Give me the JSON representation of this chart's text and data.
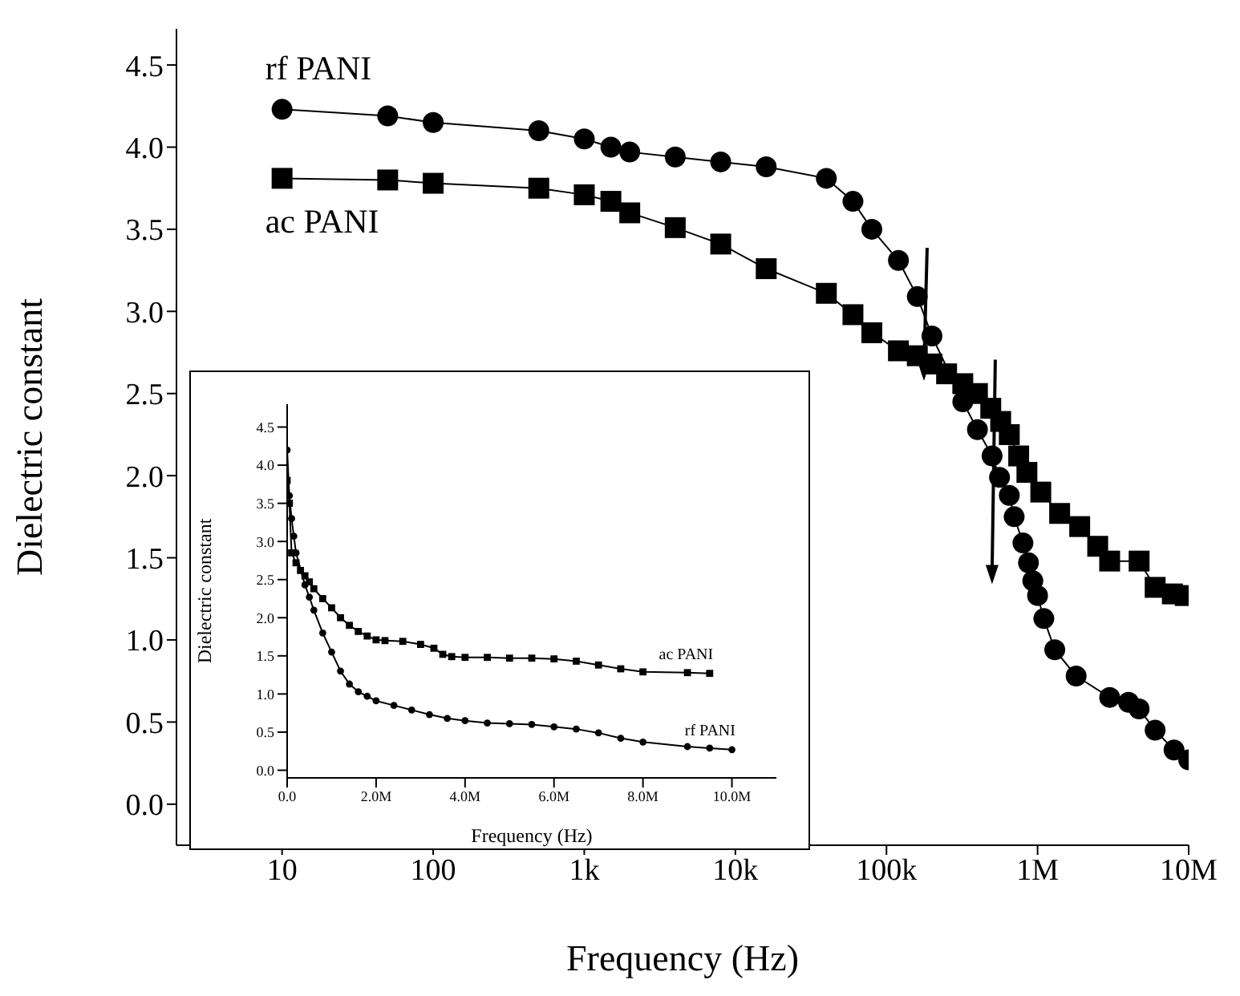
{
  "chart_data": [
    {
      "type": "line",
      "xlabel": "Frequency (Hz)",
      "ylabel": "Dielectric constant",
      "log": "x",
      "xlim": [
        2,
        10000000
      ],
      "xticks": [
        10,
        100,
        {
          "value": 1000,
          "label": "1k"
        },
        {
          "value": 10000,
          "label": "10k"
        },
        {
          "value": 100000,
          "label": "100k"
        },
        {
          "value": 1000000,
          "label": "1M"
        },
        {
          "value": 10000000,
          "label": "10M"
        }
      ],
      "ylim": [
        -0.25,
        4.72
      ],
      "yticks": [
        {
          "value": 0,
          "label": "0.0"
        },
        {
          "value": 0.5,
          "label": "0.5"
        },
        {
          "value": 1,
          "label": "1.0"
        },
        {
          "value": 1.5,
          "label": "1.5"
        },
        {
          "value": 2,
          "label": "2.0"
        },
        {
          "value": 2.5,
          "label": "2.5"
        },
        {
          "value": 3,
          "label": "3.0"
        },
        {
          "value": 3.5,
          "label": "3.5"
        },
        {
          "value": 4,
          "label": "4.0"
        },
        {
          "value": 4.5,
          "label": "4.5"
        }
      ],
      "line_style": "solid",
      "series": [
        {
          "name": "rf PANI",
          "color": "#000000",
          "marker": "circle",
          "x": [
            10,
            50,
            100,
            500,
            1000,
            1500,
            2000,
            4000,
            8000,
            16000,
            40000,
            60000,
            80000,
            120000,
            160000,
            200000,
            320000,
            400000,
            500000,
            560000,
            650000,
            700000,
            800000,
            870000,
            930000,
            1000000,
            1100000,
            1300000,
            1800000,
            3000000,
            4000000,
            4700000,
            6000000,
            8000000,
            10000000
          ],
          "values": [
            4.23,
            4.19,
            4.15,
            4.1,
            4.05,
            4.0,
            3.97,
            3.94,
            3.91,
            3.88,
            3.81,
            3.67,
            3.5,
            3.31,
            3.09,
            2.85,
            2.45,
            2.28,
            2.12,
            1.99,
            1.88,
            1.75,
            1.59,
            1.47,
            1.36,
            1.27,
            1.13,
            0.94,
            0.78,
            0.65,
            0.62,
            0.58,
            0.45,
            0.33,
            0.27
          ]
        },
        {
          "name": "ac PANI",
          "color": "#000000",
          "marker": "square",
          "x": [
            10,
            50,
            100,
            500,
            1000,
            1500,
            2000,
            4000,
            8000,
            16000,
            40000,
            60000,
            80000,
            120000,
            160000,
            200000,
            250000,
            320000,
            400000,
            490000,
            570000,
            650000,
            750000,
            850000,
            1050000,
            1400000,
            1900000,
            2500000,
            3000000,
            4700000,
            6000000,
            7800000,
            9500000
          ],
          "values": [
            3.81,
            3.8,
            3.78,
            3.75,
            3.71,
            3.67,
            3.6,
            3.51,
            3.41,
            3.26,
            3.11,
            2.98,
            2.87,
            2.76,
            2.73,
            2.68,
            2.62,
            2.56,
            2.5,
            2.41,
            2.33,
            2.25,
            2.12,
            2.02,
            1.9,
            1.77,
            1.69,
            1.57,
            1.48,
            1.48,
            1.32,
            1.28,
            1.27
          ]
        }
      ]
    },
    {
      "type": "line",
      "xlabel": "Frequency (Hz)",
      "ylabel": "Dielectric constant",
      "xlim": [
        0,
        11000000
      ],
      "xticks": [
        {
          "value": 0,
          "label": "0.0"
        },
        {
          "value": 2000000,
          "label": "2.0M"
        },
        {
          "value": 4000000,
          "label": "4.0M"
        },
        {
          "value": 6000000,
          "label": "6.0M"
        },
        {
          "value": 8000000,
          "label": "8.0M"
        },
        {
          "value": 10000000,
          "label": "10.0M"
        }
      ],
      "ylim": [
        -0.1,
        4.8
      ],
      "yticks": [
        {
          "value": 0,
          "label": "0.0"
        },
        {
          "value": 0.5,
          "label": "0.5"
        },
        {
          "value": 1,
          "label": "1.0"
        },
        {
          "value": 1.5,
          "label": "1.5"
        },
        {
          "value": 2,
          "label": "2.0"
        },
        {
          "value": 2.5,
          "label": "2.5"
        },
        {
          "value": 3,
          "label": "3.0"
        },
        {
          "value": 3.5,
          "label": "3.5"
        },
        {
          "value": 4,
          "label": "4.0"
        },
        {
          "value": 4.5,
          "label": "4.5"
        }
      ],
      "line_style": "solid",
      "series": [
        {
          "name": "ac PANI",
          "color": "#000000",
          "marker": "square",
          "x": [
            0,
            50000,
            100000,
            200000,
            300000,
            400000,
            500000,
            600000,
            800000,
            1000000,
            1200000,
            1400000,
            1600000,
            1800000,
            2000000,
            2200000,
            2600000,
            3000000,
            3300000,
            3500000,
            3700000,
            4000000,
            4500000,
            5000000,
            5500000,
            6000000,
            6500000,
            7000000,
            7500000,
            8000000,
            9000000,
            9500000
          ],
          "values": [
            3.8,
            3.5,
            2.85,
            2.72,
            2.62,
            2.55,
            2.47,
            2.38,
            2.25,
            2.13,
            2.0,
            1.9,
            1.82,
            1.76,
            1.71,
            1.7,
            1.69,
            1.65,
            1.6,
            1.52,
            1.49,
            1.48,
            1.48,
            1.47,
            1.47,
            1.46,
            1.43,
            1.38,
            1.33,
            1.29,
            1.28,
            1.27
          ]
        },
        {
          "name": "rf PANI",
          "color": "#000000",
          "marker": "circle",
          "x": [
            0,
            50000,
            100000,
            150000,
            200000,
            400000,
            500000,
            600000,
            800000,
            1000000,
            1200000,
            1400000,
            1600000,
            1800000,
            2000000,
            2400000,
            2800000,
            3200000,
            3600000,
            4000000,
            4500000,
            5000000,
            5500000,
            6000000,
            6500000,
            7000000,
            7500000,
            8000000,
            9000000,
            9500000,
            10000000
          ],
          "values": [
            4.2,
            3.6,
            3.3,
            3.07,
            2.85,
            2.43,
            2.27,
            2.1,
            1.8,
            1.55,
            1.3,
            1.13,
            1.03,
            0.97,
            0.91,
            0.85,
            0.79,
            0.73,
            0.68,
            0.65,
            0.62,
            0.61,
            0.6,
            0.57,
            0.54,
            0.49,
            0.42,
            0.37,
            0.31,
            0.29,
            0.27
          ]
        }
      ]
    }
  ]
}
